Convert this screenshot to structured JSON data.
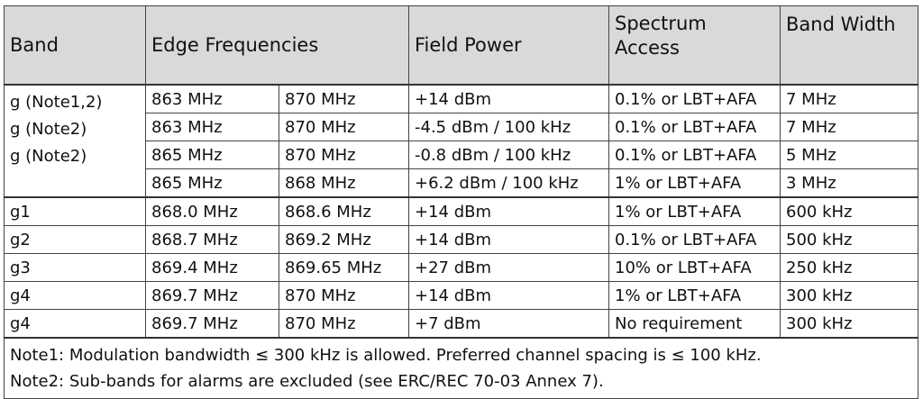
{
  "header": {
    "band": "Band",
    "edge_frequencies": "Edge Frequencies",
    "field_power": "Field Power",
    "spectrum_access_line1": "Spectrum",
    "spectrum_access_line2": "Access",
    "band_width": "Band Width"
  },
  "group_g": {
    "band_labels": [
      "g (Note1,2)",
      "g (Note2)",
      "g (Note2)"
    ],
    "rows": [
      {
        "low": "863 MHz",
        "high": "870 MHz",
        "power": "+14 dBm",
        "access": "0.1% or LBT+AFA",
        "width": "7 MHz"
      },
      {
        "low": "863 MHz",
        "high": "870 MHz",
        "power": "-4.5 dBm / 100 kHz",
        "access": "0.1% or LBT+AFA",
        "width": "7 MHz"
      },
      {
        "low": "865 MHz",
        "high": "870 MHz",
        "power": "-0.8 dBm / 100 kHz",
        "access": "0.1% or LBT+AFA",
        "width": "5 MHz"
      },
      {
        "low": "865 MHz",
        "high": "868 MHz",
        "power": "+6.2 dBm / 100 kHz",
        "access": "1% or LBT+AFA",
        "width": "3 MHz"
      }
    ]
  },
  "sub_rows": [
    {
      "band": "g1",
      "low": "868.0 MHz",
      "high": "868.6 MHz",
      "power": "+14 dBm",
      "access": "1% or LBT+AFA",
      "width": "600 kHz"
    },
    {
      "band": "g2",
      "low": "868.7 MHz",
      "high": "869.2 MHz",
      "power": "+14 dBm",
      "access": "0.1% or LBT+AFA",
      "width": "500 kHz"
    },
    {
      "band": "g3",
      "low": "869.4 MHz",
      "high": "869.65 MHz",
      "power": "+27 dBm",
      "access": "10% or LBT+AFA",
      "width": "250 kHz"
    },
    {
      "band": "g4",
      "low": "869.7 MHz",
      "high": "870 MHz",
      "power": "+14 dBm",
      "access": "1% or LBT+AFA",
      "width": "300 kHz"
    },
    {
      "band": "g4",
      "low": "869.7 MHz",
      "high": "870 MHz",
      "power": "+7 dBm",
      "access": "No requirement",
      "width": "300 kHz"
    }
  ],
  "notes": {
    "note1": "Note1: Modulation bandwidth ≤ 300 kHz is allowed. Preferred channel spacing is ≤ 100 kHz.",
    "note2": "Note2: Sub-bands for alarms are excluded (see ERC/REC 70-03 Annex 7)."
  }
}
